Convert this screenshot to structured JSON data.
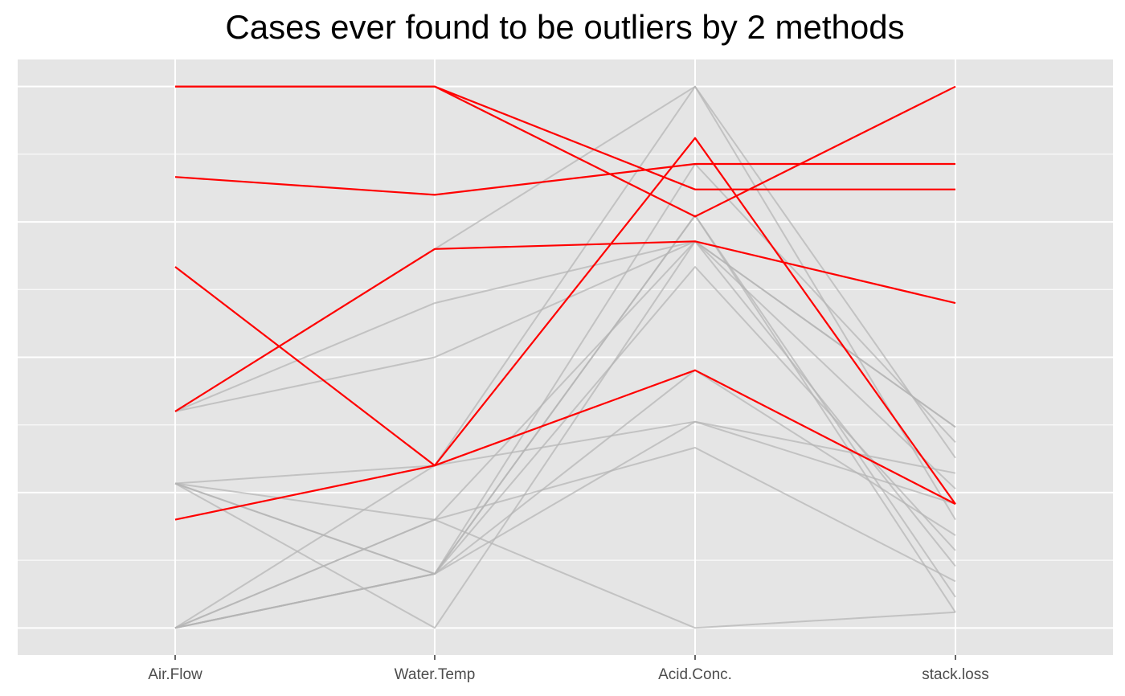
{
  "chart_data": {
    "type": "line",
    "subtype": "parallel-coordinates",
    "title": "Cases ever found to be outliers by 2 methods",
    "xlabel": "",
    "ylabel": "",
    "categories": [
      "Air.Flow",
      "Water.Temp",
      "Acid.Conc.",
      "stack.loss"
    ],
    "ylim": [
      -0.05,
      1.05
    ],
    "y_ticks_labeled": false,
    "grid": true,
    "legend": "none",
    "colors": {
      "panel": "#e5e5e5",
      "grid": "#ffffff",
      "outlier": "#ff0000",
      "normal": "#b3b3b3"
    },
    "series": [
      {
        "outlier": true,
        "values": [
          1.0,
          1.0,
          0.81,
          0.81
        ]
      },
      {
        "outlier": true,
        "values": [
          1.0,
          1.0,
          0.76,
          1.0
        ]
      },
      {
        "outlier": true,
        "values": [
          0.833,
          0.8,
          0.857,
          0.857
        ]
      },
      {
        "outlier": true,
        "values": [
          0.667,
          0.3,
          0.905,
          0.229
        ]
      },
      {
        "outlier": true,
        "values": [
          0.4,
          0.7,
          0.714,
          0.6
        ]
      },
      {
        "outlier": true,
        "values": [
          0.2,
          0.3,
          0.476,
          0.229
        ]
      },
      {
        "outlier": false,
        "values": [
          0.4,
          0.7,
          1.0,
          0.314
        ]
      },
      {
        "outlier": false,
        "values": [
          0.4,
          0.6,
          0.714,
          0.371
        ]
      },
      {
        "outlier": false,
        "values": [
          0.4,
          0.5,
          0.714,
          0.257
        ]
      },
      {
        "outlier": false,
        "values": [
          0.267,
          0.3,
          0.381,
          0.229
        ]
      },
      {
        "outlier": false,
        "values": [
          0.267,
          0.1,
          0.476,
          0.171
        ]
      },
      {
        "outlier": false,
        "values": [
          0.267,
          0.1,
          0.381,
          0.286
        ]
      },
      {
        "outlier": false,
        "values": [
          0.267,
          0.2,
          0.0,
          0.029
        ]
      },
      {
        "outlier": false,
        "values": [
          0.267,
          0.0,
          0.714,
          0.371
        ]
      },
      {
        "outlier": false,
        "values": [
          0.0,
          0.1,
          0.857,
          0.343
        ]
      },
      {
        "outlier": false,
        "values": [
          0.0,
          0.1,
          0.762,
          0.057
        ]
      },
      {
        "outlier": false,
        "values": [
          0.0,
          0.1,
          0.667,
          0.143
        ]
      },
      {
        "outlier": false,
        "values": [
          0.0,
          0.2,
          0.333,
          0.086
        ]
      },
      {
        "outlier": false,
        "values": [
          0.0,
          0.3,
          1.0,
          0.2
        ]
      },
      {
        "outlier": false,
        "values": [
          0.0,
          0.2,
          0.714,
          0.114
        ]
      },
      {
        "outlier": false,
        "values": [
          0.0,
          0.1,
          0.762,
          0.029
        ]
      }
    ]
  }
}
